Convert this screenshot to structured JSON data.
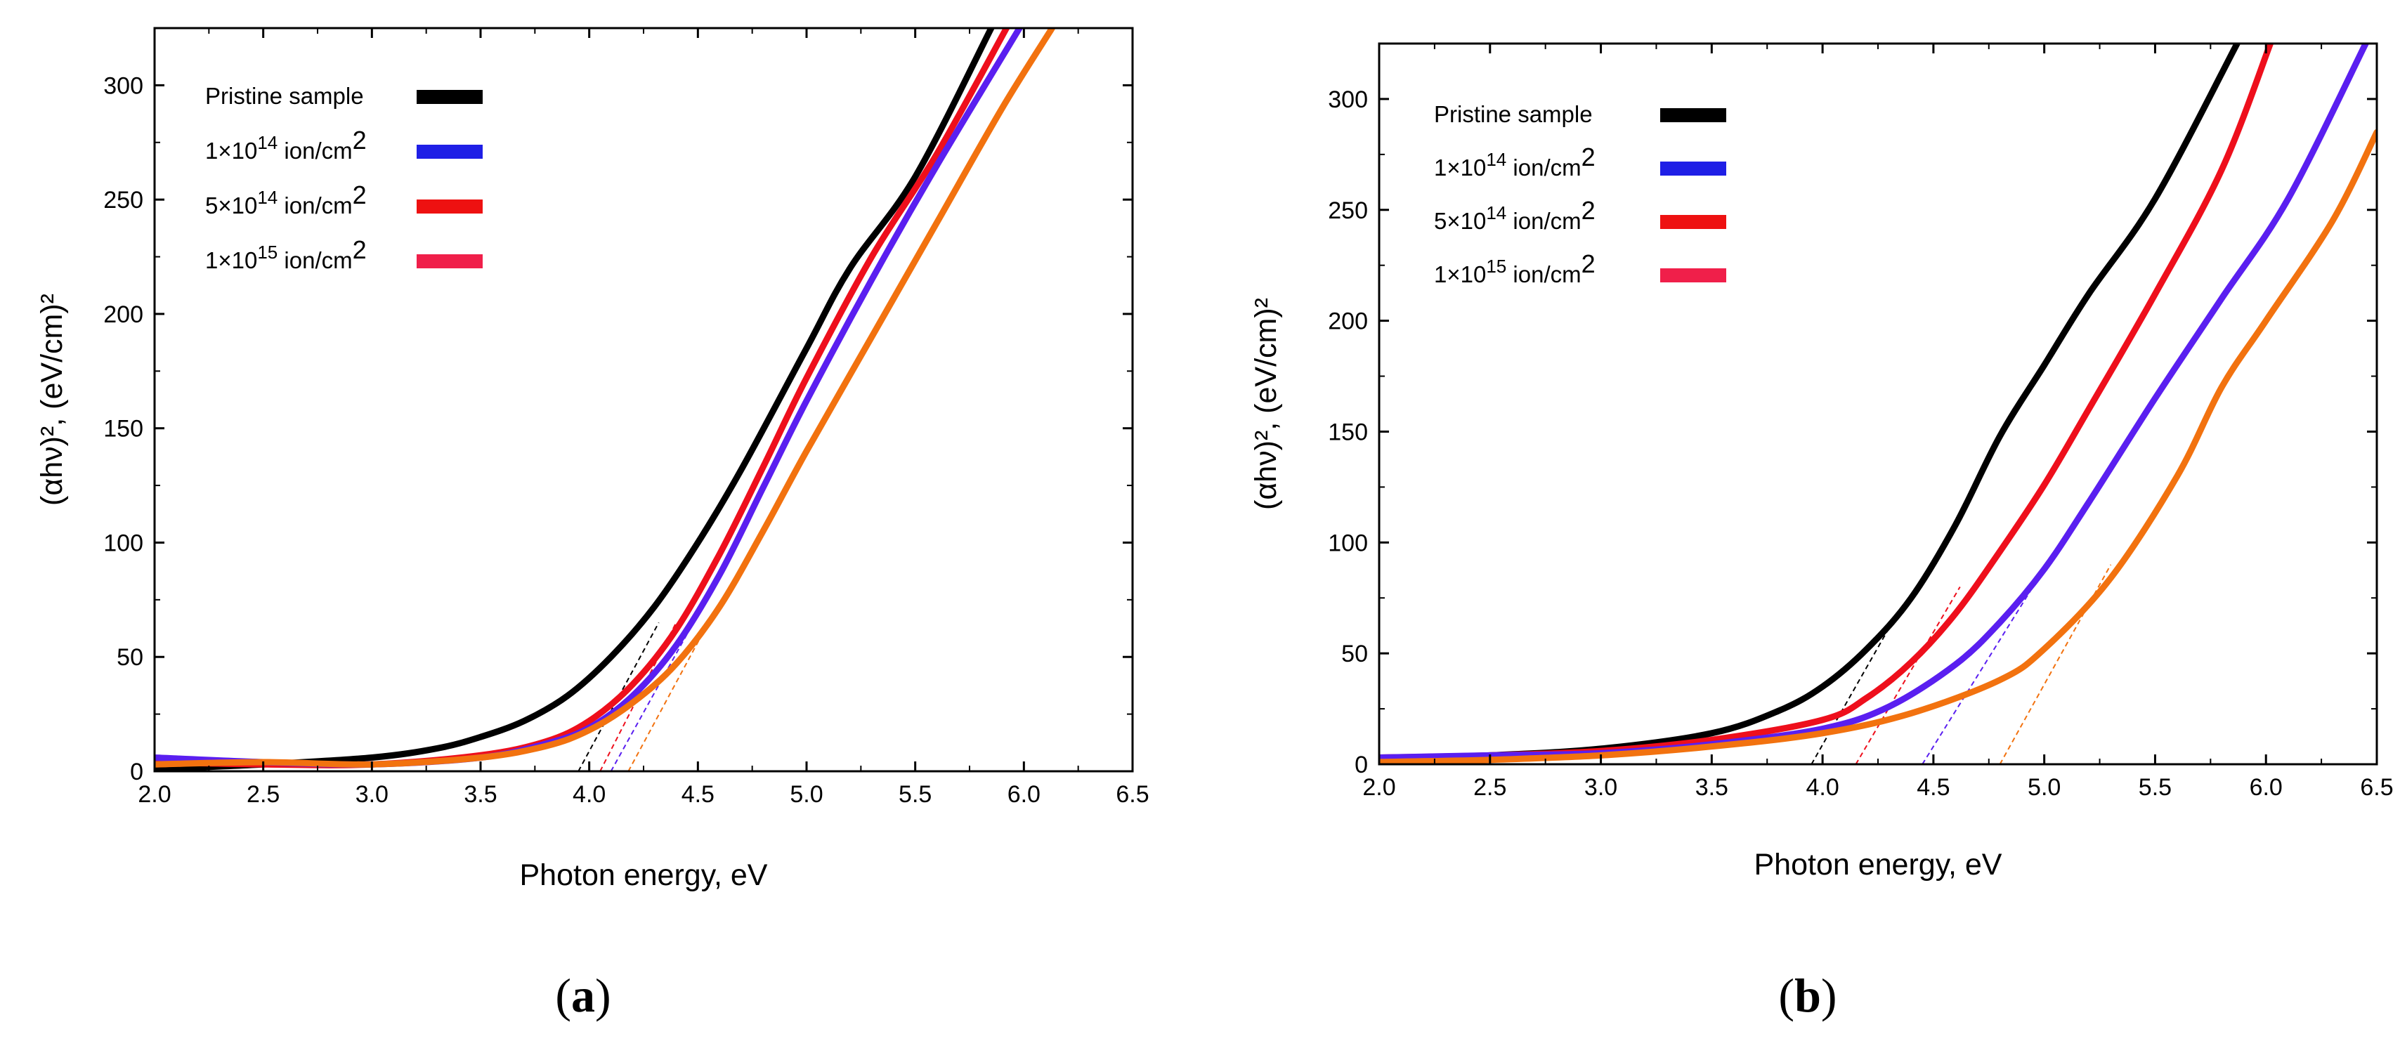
{
  "figure": {
    "colors": {
      "pristine": "#000000",
      "dose_1e14": "#5a1ff0",
      "dose_5e14": "#ee0f1c",
      "dose_1e15": "#f2720f"
    }
  },
  "chart_data": [
    {
      "id": "a",
      "type": "line",
      "panel_label": "a",
      "xlabel": "Photon energy, eV",
      "ylabel": "(αhν)², (eV/cm)²",
      "xlim": [
        2.0,
        6.5
      ],
      "ylim": [
        0,
        325
      ],
      "xticks": [
        2.0,
        2.5,
        3.0,
        3.5,
        4.0,
        4.5,
        5.0,
        5.5,
        6.0,
        6.5
      ],
      "xtick_labels": [
        "2.0",
        "2.5",
        "3.0",
        "3.5",
        "4.0",
        "4.5",
        "5.0",
        "5.5",
        "6.0",
        "6.5"
      ],
      "yticks": [
        0,
        50,
        100,
        150,
        200,
        250,
        300
      ],
      "ytick_labels": [
        "0",
        "50",
        "100",
        "150",
        "200",
        "250",
        "300"
      ],
      "legend": [
        {
          "label": "Pristine sample",
          "color": "#000000"
        },
        {
          "label": "1×10",
          "exp": "14",
          "unit": " ion/cm",
          "unit_exp": "2",
          "color": "#1f1fe6"
        },
        {
          "label": "5×10",
          "exp": "14",
          "unit": " ion/cm",
          "unit_exp": "2",
          "color": "#ee1111"
        },
        {
          "label": "1×10",
          "exp": "15",
          "unit": " ion/cm",
          "unit_exp": "2",
          "color": "#f01f4a"
        }
      ],
      "series": [
        {
          "name": "Pristine sample",
          "color": "#000000",
          "x": [
            2.0,
            2.5,
            3.0,
            3.3,
            3.5,
            3.7,
            3.9,
            4.1,
            4.3,
            4.5,
            4.7,
            5.0,
            5.2,
            5.5,
            5.85
          ],
          "y": [
            1,
            3,
            6,
            10,
            15,
            22,
            33,
            50,
            72,
            100,
            132,
            185,
            220,
            260,
            325
          ]
        },
        {
          "name": "5×10^14 ion/cm^2",
          "color": "#ee0f1c",
          "x": [
            2.0,
            2.5,
            3.0,
            3.5,
            3.8,
            4.0,
            4.2,
            4.4,
            4.6,
            4.8,
            5.0,
            5.3,
            5.6,
            5.92
          ],
          "y": [
            4,
            3,
            3,
            7,
            13,
            22,
            38,
            62,
            95,
            133,
            172,
            225,
            270,
            325
          ]
        },
        {
          "name": "1×10^14 ion/cm^2",
          "color": "#5a1ff0",
          "x": [
            2.0,
            2.5,
            3.0,
            3.5,
            3.8,
            4.0,
            4.2,
            4.4,
            4.6,
            4.8,
            5.0,
            5.3,
            5.6,
            5.98
          ],
          "y": [
            6,
            4,
            3,
            6,
            12,
            19,
            33,
            55,
            86,
            124,
            162,
            215,
            265,
            325
          ]
        },
        {
          "name": "1×10^15 ion/cm^2",
          "color": "#f2720f",
          "x": [
            2.0,
            2.5,
            3.0,
            3.5,
            3.8,
            4.0,
            4.2,
            4.4,
            4.6,
            4.8,
            5.0,
            5.3,
            5.6,
            5.9,
            6.13
          ],
          "y": [
            3,
            4,
            3,
            6,
            11,
            18,
            30,
            47,
            72,
            105,
            140,
            190,
            240,
            290,
            325
          ]
        }
      ],
      "tangents": [
        {
          "color": "#000000",
          "x": [
            3.95,
            4.32
          ],
          "y": [
            0,
            65
          ]
        },
        {
          "color": "#ee0f1c",
          "x": [
            4.05,
            4.4
          ],
          "y": [
            0,
            65
          ]
        },
        {
          "color": "#5a1ff0",
          "x": [
            4.1,
            4.45
          ],
          "y": [
            0,
            60
          ]
        },
        {
          "color": "#f2720f",
          "x": [
            4.18,
            4.52
          ],
          "y": [
            0,
            60
          ]
        }
      ]
    },
    {
      "id": "b",
      "type": "line",
      "panel_label": "b",
      "xlabel": "Photon energy, eV",
      "ylabel": "(αhν)², (eV/cm)²",
      "xlim": [
        2.0,
        6.5
      ],
      "ylim": [
        0,
        325
      ],
      "xticks": [
        2.0,
        2.5,
        3.0,
        3.5,
        4.0,
        4.5,
        5.0,
        5.5,
        6.0,
        6.5
      ],
      "xtick_labels": [
        "2.0",
        "2.5",
        "3.0",
        "3.5",
        "4.0",
        "4.5",
        "5.0",
        "5.5",
        "6.0",
        "6.5"
      ],
      "yticks": [
        0,
        50,
        100,
        150,
        200,
        250,
        300
      ],
      "ytick_labels": [
        "0",
        "50",
        "100",
        "150",
        "200",
        "250",
        "300"
      ],
      "legend": [
        {
          "label": "Pristine sample",
          "color": "#000000"
        },
        {
          "label": "1×10",
          "exp": "14",
          "unit": " ion/cm",
          "unit_exp": "2",
          "color": "#1f1fe6"
        },
        {
          "label": "5×10",
          "exp": "14",
          "unit": " ion/cm",
          "unit_exp": "2",
          "color": "#ee1111"
        },
        {
          "label": "1×10",
          "exp": "15",
          "unit": " ion/cm",
          "unit_exp": "2",
          "color": "#f01f4a"
        }
      ],
      "series": [
        {
          "name": "Pristine sample",
          "color": "#000000",
          "x": [
            2.0,
            2.5,
            3.0,
            3.5,
            3.8,
            4.0,
            4.2,
            4.4,
            4.6,
            4.8,
            5.0,
            5.2,
            5.5,
            5.87
          ],
          "y": [
            2,
            4,
            7,
            14,
            24,
            35,
            52,
            75,
            108,
            148,
            180,
            212,
            255,
            325
          ]
        },
        {
          "name": "5×10^14 ion/cm^2",
          "color": "#ee0f1c",
          "x": [
            2.0,
            2.5,
            3.0,
            3.5,
            4.0,
            4.2,
            4.4,
            4.6,
            4.8,
            5.0,
            5.2,
            5.5,
            5.8,
            6.02
          ],
          "y": [
            3,
            4,
            6,
            11,
            20,
            30,
            46,
            68,
            96,
            126,
            160,
            212,
            268,
            325
          ]
        },
        {
          "name": "1×10^14 ion/cm^2",
          "color": "#5a1ff0",
          "x": [
            2.0,
            2.5,
            3.0,
            3.5,
            4.0,
            4.3,
            4.6,
            4.8,
            5.0,
            5.2,
            5.5,
            5.8,
            6.1,
            6.45
          ],
          "y": [
            3,
            4,
            5,
            9,
            16,
            26,
            45,
            64,
            88,
            118,
            165,
            210,
            255,
            325
          ]
        },
        {
          "name": "1×10^15 ion/cm^2",
          "color": "#f2720f",
          "x": [
            2.0,
            2.5,
            3.0,
            3.5,
            4.0,
            4.4,
            4.8,
            5.0,
            5.3,
            5.6,
            5.8,
            6.0,
            6.3,
            6.5
          ],
          "y": [
            1,
            2,
            4,
            8,
            14,
            23,
            38,
            52,
            84,
            130,
            170,
            200,
            245,
            285
          ]
        }
      ],
      "tangents": [
        {
          "color": "#000000",
          "x": [
            3.95,
            4.32
          ],
          "y": [
            0,
            65
          ]
        },
        {
          "color": "#ee0f1c",
          "x": [
            4.15,
            4.62
          ],
          "y": [
            0,
            80
          ]
        },
        {
          "color": "#5a1ff0",
          "x": [
            4.45,
            4.98
          ],
          "y": [
            0,
            85
          ]
        },
        {
          "color": "#f2720f",
          "x": [
            4.8,
            5.3
          ],
          "y": [
            0,
            90
          ]
        }
      ]
    }
  ]
}
